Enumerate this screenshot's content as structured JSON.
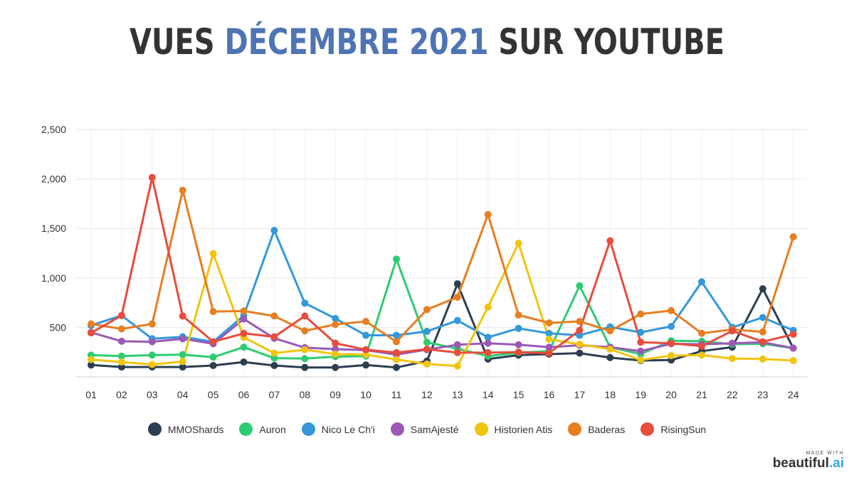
{
  "title": {
    "part1": "VUES ",
    "highlight": "DÉCEMBRE 2021",
    "part2": " SUR YOUTUBE"
  },
  "brand": {
    "small": "MADE WITH",
    "main": "beautiful",
    "ai": ".ai"
  },
  "chart_data": {
    "type": "line",
    "title": "VUES DÉCEMBRE 2021 SUR YOUTUBE",
    "xlabel": "",
    "ylabel": "",
    "ylim": [
      0,
      2500
    ],
    "yticks": [
      500,
      1000,
      1500,
      2000,
      2500
    ],
    "ytick_labels": [
      "500",
      "1,000",
      "1,500",
      "2,000",
      "2,500"
    ],
    "grid": true,
    "legend_position": "bottom",
    "categories": [
      "01",
      "02",
      "03",
      "04",
      "05",
      "06",
      "07",
      "08",
      "09",
      "10",
      "11",
      "12",
      "13",
      "14",
      "15",
      "16",
      "17",
      "18",
      "19",
      "20",
      "21",
      "22",
      "23",
      "24"
    ],
    "series": [
      {
        "name": "MMOShards",
        "color": "#2c3e50",
        "values": [
          120,
          100,
          100,
          100,
          115,
          150,
          115,
          95,
          95,
          120,
          95,
          160,
          940,
          180,
          220,
          230,
          240,
          195,
          165,
          170,
          260,
          300,
          890,
          290
        ]
      },
      {
        "name": "Auron",
        "color": "#2ecc71",
        "values": [
          220,
          210,
          220,
          225,
          200,
          300,
          190,
          185,
          205,
          210,
          1190,
          350,
          285,
          210,
          245,
          260,
          920,
          300,
          230,
          365,
          360,
          330,
          335,
          290
        ]
      },
      {
        "name": "Nico Le Ch'i",
        "color": "#3498db",
        "values": [
          520,
          620,
          385,
          405,
          355,
          620,
          1480,
          745,
          590,
          420,
          420,
          460,
          570,
          400,
          490,
          440,
          420,
          505,
          450,
          510,
          960,
          500,
          600,
          470
        ]
      },
      {
        "name": "SamAjesté",
        "color": "#9b59b6",
        "values": [
          450,
          360,
          355,
          385,
          335,
          585,
          390,
          295,
          280,
          270,
          225,
          275,
          325,
          340,
          325,
          300,
          320,
          300,
          260,
          335,
          330,
          340,
          350,
          290
        ]
      },
      {
        "name": "Historien Atis",
        "color": "#f1c40f",
        "values": [
          175,
          150,
          125,
          155,
          1245,
          400,
          240,
          275,
          230,
          225,
          175,
          130,
          110,
          705,
          1350,
          380,
          330,
          280,
          170,
          215,
          220,
          185,
          180,
          165
        ]
      },
      {
        "name": "Baderas",
        "color": "#e67e22",
        "values": [
          535,
          485,
          535,
          1885,
          660,
          665,
          615,
          465,
          530,
          560,
          355,
          680,
          805,
          1640,
          625,
          545,
          560,
          465,
          635,
          670,
          440,
          480,
          455,
          1415
        ]
      },
      {
        "name": "RisingSun",
        "color": "#e74c3c",
        "values": [
          445,
          620,
          2015,
          615,
          355,
          440,
          405,
          615,
          340,
          275,
          245,
          280,
          245,
          245,
          250,
          240,
          470,
          1375,
          350,
          340,
          310,
          465,
          355,
          430
        ]
      }
    ]
  }
}
